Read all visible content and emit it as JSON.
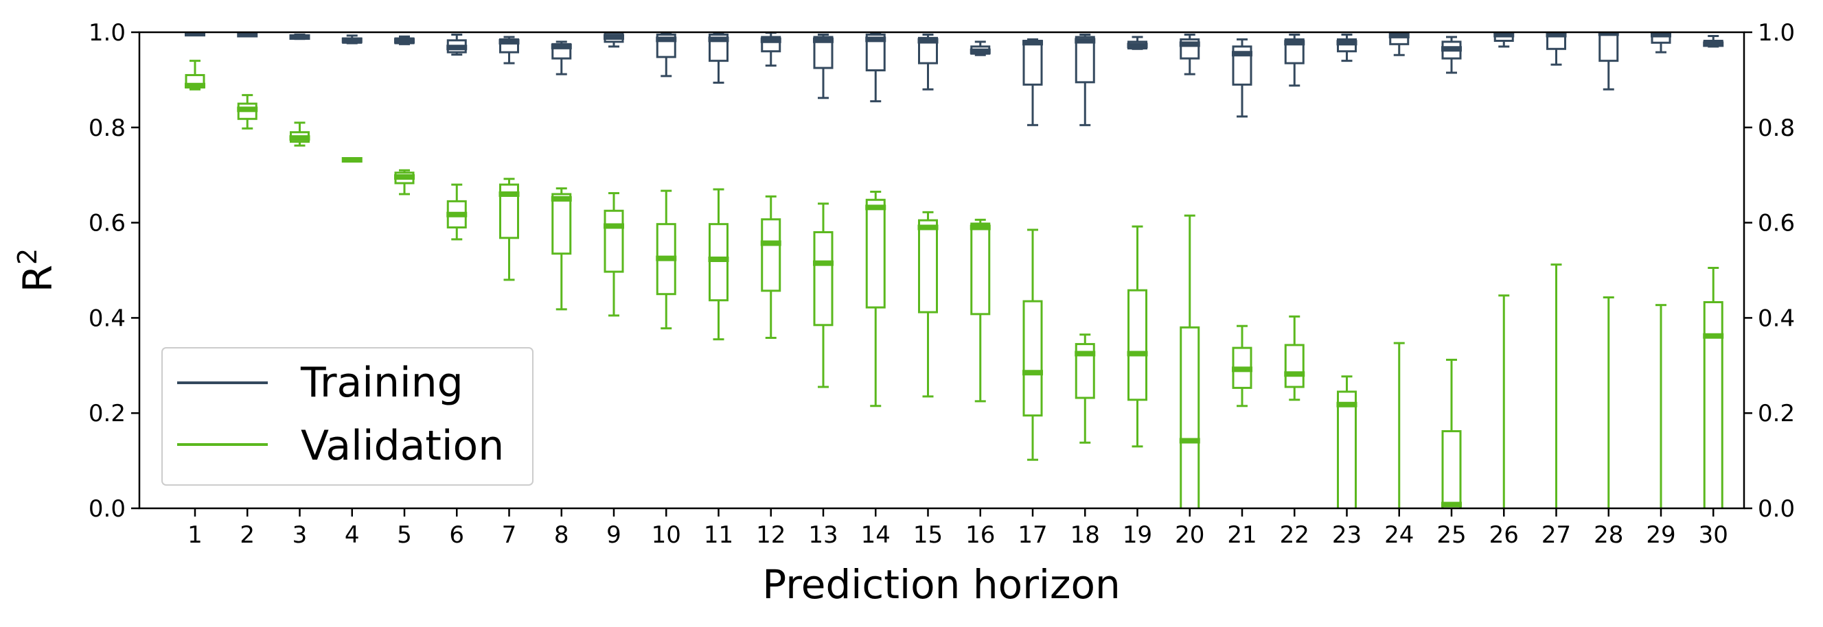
{
  "chart_data": {
    "type": "box",
    "xlabel": "Prediction horizon",
    "ylabel": "R",
    "ylabel_superscript": "2",
    "ylim": [
      0.0,
      1.0
    ],
    "yticks": [
      "0.0",
      "0.2",
      "0.4",
      "0.6",
      "0.8",
      "1.0"
    ],
    "right_axis_ticks": true,
    "grid": false,
    "legend_position": "lower-left",
    "categories": [
      "1",
      "2",
      "3",
      "4",
      "5",
      "6",
      "7",
      "8",
      "9",
      "10",
      "11",
      "12",
      "13",
      "14",
      "15",
      "16",
      "17",
      "18",
      "19",
      "20",
      "21",
      "22",
      "23",
      "24",
      "25",
      "26",
      "27",
      "28",
      "29",
      "30"
    ],
    "series": [
      {
        "name": "Training",
        "color": "#34495e",
        "boxes": [
          {
            "wlo": 0.995,
            "q1": 0.996,
            "med": 0.997,
            "q3": 0.999,
            "whi": 1.0
          },
          {
            "wlo": 0.992,
            "q1": 0.993,
            "med": 0.995,
            "q3": 0.997,
            "whi": 0.999
          },
          {
            "wlo": 0.986,
            "q1": 0.987,
            "med": 0.99,
            "q3": 0.993,
            "whi": 0.995
          },
          {
            "wlo": 0.977,
            "q1": 0.978,
            "med": 0.983,
            "q3": 0.987,
            "whi": 0.993
          },
          {
            "wlo": 0.975,
            "q1": 0.977,
            "med": 0.982,
            "q3": 0.987,
            "whi": 0.991
          },
          {
            "wlo": 0.953,
            "q1": 0.958,
            "med": 0.968,
            "q3": 0.983,
            "whi": 0.995
          },
          {
            "wlo": 0.935,
            "q1": 0.958,
            "med": 0.98,
            "q3": 0.985,
            "whi": 0.99
          },
          {
            "wlo": 0.912,
            "q1": 0.945,
            "med": 0.97,
            "q3": 0.975,
            "whi": 0.98
          },
          {
            "wlo": 0.97,
            "q1": 0.98,
            "med": 0.99,
            "q3": 0.998,
            "whi": 1.0
          },
          {
            "wlo": 0.908,
            "q1": 0.948,
            "med": 0.985,
            "q3": 0.995,
            "whi": 0.999
          },
          {
            "wlo": 0.894,
            "q1": 0.94,
            "med": 0.985,
            "q3": 0.995,
            "whi": 0.999
          },
          {
            "wlo": 0.93,
            "q1": 0.96,
            "med": 0.983,
            "q3": 0.99,
            "whi": 0.999
          },
          {
            "wlo": 0.862,
            "q1": 0.925,
            "med": 0.983,
            "q3": 0.99,
            "whi": 0.995
          },
          {
            "wlo": 0.855,
            "q1": 0.92,
            "med": 0.985,
            "q3": 0.995,
            "whi": 0.999
          },
          {
            "wlo": 0.88,
            "q1": 0.935,
            "med": 0.982,
            "q3": 0.988,
            "whi": 0.995
          },
          {
            "wlo": 0.952,
            "q1": 0.955,
            "med": 0.96,
            "q3": 0.97,
            "whi": 0.98
          },
          {
            "wlo": 0.805,
            "q1": 0.89,
            "med": 0.978,
            "q3": 0.982,
            "whi": 0.985
          },
          {
            "wlo": 0.805,
            "q1": 0.895,
            "med": 0.982,
            "q3": 0.99,
            "whi": 0.995
          },
          {
            "wlo": 0.965,
            "q1": 0.966,
            "med": 0.972,
            "q3": 0.98,
            "whi": 0.99
          },
          {
            "wlo": 0.912,
            "q1": 0.945,
            "med": 0.975,
            "q3": 0.985,
            "whi": 0.995
          },
          {
            "wlo": 0.823,
            "q1": 0.89,
            "med": 0.955,
            "q3": 0.97,
            "whi": 0.985
          },
          {
            "wlo": 0.888,
            "q1": 0.935,
            "med": 0.978,
            "q3": 0.985,
            "whi": 0.995
          },
          {
            "wlo": 0.94,
            "q1": 0.96,
            "med": 0.978,
            "q3": 0.985,
            "whi": 0.995
          },
          {
            "wlo": 0.952,
            "q1": 0.975,
            "med": 0.993,
            "q3": 0.998,
            "whi": 1.0
          },
          {
            "wlo": 0.915,
            "q1": 0.945,
            "med": 0.965,
            "q3": 0.98,
            "whi": 0.99
          },
          {
            "wlo": 0.97,
            "q1": 0.982,
            "med": 0.995,
            "q3": 0.999,
            "whi": 1.0
          },
          {
            "wlo": 0.932,
            "q1": 0.965,
            "med": 0.995,
            "q3": 0.999,
            "whi": 1.0
          },
          {
            "wlo": 0.88,
            "q1": 0.94,
            "med": 0.998,
            "q3": 1.0,
            "whi": 1.0
          },
          {
            "wlo": 0.958,
            "q1": 0.978,
            "med": 0.995,
            "q3": 0.999,
            "whi": 1.0
          },
          {
            "wlo": 0.97,
            "q1": 0.972,
            "med": 0.975,
            "q3": 0.982,
            "whi": 0.992
          }
        ]
      },
      {
        "name": "Validation",
        "color": "#5bb81e",
        "boxes": [
          {
            "wlo": 0.88,
            "q1": 0.884,
            "med": 0.888,
            "q3": 0.91,
            "whi": 0.94
          },
          {
            "wlo": 0.798,
            "q1": 0.818,
            "med": 0.838,
            "q3": 0.85,
            "whi": 0.868
          },
          {
            "wlo": 0.762,
            "q1": 0.77,
            "med": 0.778,
            "q3": 0.79,
            "whi": 0.81
          },
          {
            "wlo": 0.73,
            "q1": 0.731,
            "med": 0.732,
            "q3": 0.733,
            "whi": 0.735
          },
          {
            "wlo": 0.66,
            "q1": 0.683,
            "med": 0.696,
            "q3": 0.705,
            "whi": 0.71
          },
          {
            "wlo": 0.565,
            "q1": 0.59,
            "med": 0.617,
            "q3": 0.645,
            "whi": 0.68
          },
          {
            "wlo": 0.48,
            "q1": 0.568,
            "med": 0.66,
            "q3": 0.68,
            "whi": 0.692
          },
          {
            "wlo": 0.418,
            "q1": 0.535,
            "med": 0.65,
            "q3": 0.66,
            "whi": 0.672
          },
          {
            "wlo": 0.405,
            "q1": 0.497,
            "med": 0.593,
            "q3": 0.625,
            "whi": 0.662
          },
          {
            "wlo": 0.378,
            "q1": 0.45,
            "med": 0.525,
            "q3": 0.597,
            "whi": 0.667
          },
          {
            "wlo": 0.355,
            "q1": 0.437,
            "med": 0.523,
            "q3": 0.597,
            "whi": 0.67
          },
          {
            "wlo": 0.358,
            "q1": 0.457,
            "med": 0.557,
            "q3": 0.607,
            "whi": 0.655
          },
          {
            "wlo": 0.255,
            "q1": 0.385,
            "med": 0.515,
            "q3": 0.58,
            "whi": 0.64
          },
          {
            "wlo": 0.215,
            "q1": 0.422,
            "med": 0.632,
            "q3": 0.648,
            "whi": 0.665
          },
          {
            "wlo": 0.235,
            "q1": 0.412,
            "med": 0.59,
            "q3": 0.605,
            "whi": 0.622
          },
          {
            "wlo": 0.225,
            "q1": 0.408,
            "med": 0.59,
            "q3": 0.598,
            "whi": 0.606
          },
          {
            "wlo": 0.102,
            "q1": 0.195,
            "med": 0.285,
            "q3": 0.435,
            "whi": 0.585
          },
          {
            "wlo": 0.138,
            "q1": 0.232,
            "med": 0.325,
            "q3": 0.345,
            "whi": 0.365
          },
          {
            "wlo": 0.13,
            "q1": 0.228,
            "med": 0.325,
            "q3": 0.458,
            "whi": 0.592
          },
          {
            "wlo": -0.05,
            "q1": -0.05,
            "med": 0.142,
            "q3": 0.38,
            "whi": 0.615
          },
          {
            "wlo": 0.215,
            "q1": 0.253,
            "med": 0.292,
            "q3": 0.337,
            "whi": 0.383
          },
          {
            "wlo": 0.228,
            "q1": 0.255,
            "med": 0.282,
            "q3": 0.343,
            "whi": 0.403
          },
          {
            "wlo": -0.05,
            "q1": -0.05,
            "med": 0.218,
            "q3": 0.245,
            "whi": 0.277
          },
          {
            "wlo": -0.05,
            "q1": -0.05,
            "med": -0.05,
            "q3": -0.05,
            "whi": 0.347
          },
          {
            "wlo": -0.05,
            "q1": -0.05,
            "med": 0.008,
            "q3": 0.162,
            "whi": 0.312
          },
          {
            "wlo": -0.05,
            "q1": -0.05,
            "med": -0.05,
            "q3": -0.05,
            "whi": 0.447
          },
          {
            "wlo": -0.05,
            "q1": -0.05,
            "med": -0.05,
            "q3": -0.05,
            "whi": 0.512
          },
          {
            "wlo": -0.05,
            "q1": -0.05,
            "med": -0.05,
            "q3": -0.05,
            "whi": 0.443
          },
          {
            "wlo": -0.05,
            "q1": -0.05,
            "med": -0.05,
            "q3": -0.05,
            "whi": 0.427
          },
          {
            "wlo": -0.05,
            "q1": -0.05,
            "med": 0.362,
            "q3": 0.433,
            "whi": 0.505
          }
        ]
      }
    ]
  }
}
